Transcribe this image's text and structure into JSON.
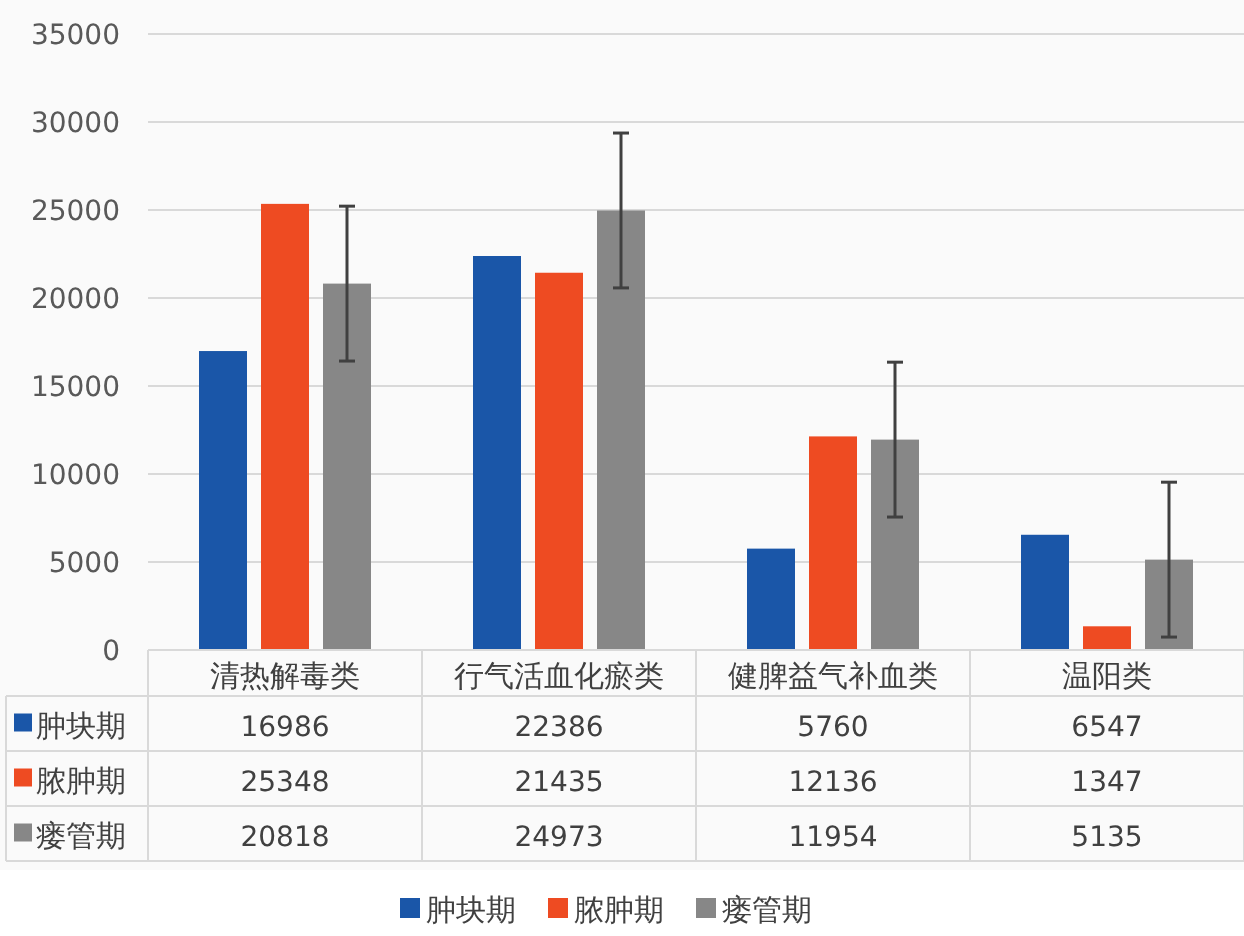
{
  "chart_data": {
    "type": "bar",
    "categories": [
      "清热解毒类",
      "行气活血化瘀类",
      "健脾益气补血类",
      "温阳类"
    ],
    "series": [
      {
        "name": "肿块期",
        "color": "#1a56a8",
        "values": [
          16986,
          22386,
          5760,
          6547
        ]
      },
      {
        "name": "脓肿期",
        "color": "#ee4b22",
        "values": [
          25348,
          21435,
          12136,
          1347
        ]
      },
      {
        "name": "瘘管期",
        "color": "#878787",
        "values": [
          20818,
          24973,
          11954,
          5135
        ],
        "errors": [
          4400,
          4400,
          4400,
          4400
        ]
      }
    ],
    "ylim": [
      0,
      35000
    ],
    "yticks": [
      0,
      5000,
      10000,
      15000,
      20000,
      25000,
      30000,
      35000
    ],
    "grid": "y",
    "legend": "bottom",
    "data_labels": true
  }
}
